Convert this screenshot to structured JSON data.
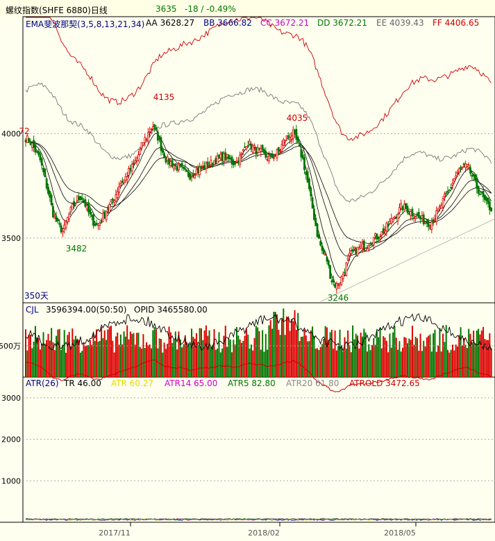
{
  "header": {
    "title": "螺纹指数(SHFE 6880)日线",
    "last": "3635",
    "change": "-18 / -0.49%"
  },
  "price_legend": [
    {
      "text": "EMA斐波那契(3,5,8,13,21,34)",
      "color": "#000080"
    },
    {
      "text": "AA 3628.27",
      "color": "#000000"
    },
    {
      "text": "BB 3666.82",
      "color": "#000080"
    },
    {
      "text": "CC 3672.21",
      "color": "#cc00cc"
    },
    {
      "text": "DD 3672.21",
      "color": "#007700"
    },
    {
      "text": "EE 4039.43",
      "color": "#666666"
    },
    {
      "text": "FF 4406.65",
      "color": "#cc0000"
    }
  ],
  "volume_legend": {
    "name": "CJL",
    "value": "3596394.00(50:50)",
    "opid": "OPID 3465580.00"
  },
  "atr_legend": [
    {
      "text": "ATR(26)",
      "color": "#000080"
    },
    {
      "text": "TR 46.00",
      "color": "#000000"
    },
    {
      "text": "ATR 60.27",
      "color": "#dddd00"
    },
    {
      "text": "ATR14 65.00",
      "color": "#cc00cc"
    },
    {
      "text": "ATR5 82.80",
      "color": "#007700"
    },
    {
      "text": "ATR20 61.80",
      "color": "#888888"
    },
    {
      "text": "ATROLD 3472.65",
      "color": "#cc0000"
    }
  ],
  "chart_data": [
    {
      "type": "candlestick",
      "title": "螺纹指数(SHFE 6880)日线",
      "y_ticks": [
        3500,
        4000
      ],
      "ylim": [
        3190,
        4560
      ],
      "period_label": "350天",
      "annotations": [
        {
          "label": "72",
          "value": 3972
        },
        {
          "label": "4135",
          "value": 4135
        },
        {
          "label": "3482",
          "value": 3482
        },
        {
          "label": "4035",
          "value": 4035
        },
        {
          "label": "3246",
          "value": 3246
        }
      ],
      "series": [
        {
          "name": "EMA斐波那契(3,5,8,13,21,34)",
          "last": 3628.27
        },
        {
          "name": "EE",
          "last": 4039.43,
          "color": "#888888"
        },
        {
          "name": "FF",
          "last": 4406.65,
          "color": "#cc0000"
        }
      ],
      "close_path": [
        3980,
        3960,
        3920,
        3880,
        3790,
        3700,
        3600,
        3560,
        3530,
        3600,
        3650,
        3690,
        3700,
        3640,
        3590,
        3560,
        3580,
        3630,
        3660,
        3700,
        3760,
        3780,
        3820,
        3850,
        3900,
        3960,
        4000,
        4040,
        3990,
        3920,
        3870,
        3860,
        3840,
        3830,
        3810,
        3800,
        3820,
        3830,
        3840,
        3850,
        3870,
        3880,
        3890,
        3880,
        3860,
        3870,
        3900,
        3960,
        3940,
        3920,
        3910,
        3890,
        3880,
        3900,
        3920,
        3970,
        3990,
        4000,
        3940,
        3870,
        3760,
        3640,
        3520,
        3440,
        3400,
        3300,
        3270,
        3300,
        3360,
        3420,
        3440,
        3450,
        3460,
        3480,
        3500,
        3510,
        3530,
        3560,
        3590,
        3620,
        3650,
        3640,
        3620,
        3610,
        3590,
        3580,
        3570,
        3600,
        3640,
        3690,
        3720,
        3780,
        3820,
        3840,
        3840,
        3790,
        3740,
        3700,
        3660,
        3640
      ]
    },
    {
      "type": "bar",
      "title": "CJL",
      "y_ticks_text": [
        "500万"
      ],
      "values_note": "daily volume in 万",
      "value": 3596394.0,
      "opid": 3465580.0
    },
    {
      "type": "line",
      "title": "ATR(26)",
      "y_ticks": [
        1000,
        2000,
        3000
      ],
      "ylim": [
        0,
        3500
      ],
      "series": [
        {
          "name": "ATROLD",
          "color": "#cc0000",
          "last": 3472.65
        }
      ]
    }
  ],
  "x_axis": {
    "labels": [
      "2017/11",
      "2018/02",
      "2018/05"
    ]
  }
}
